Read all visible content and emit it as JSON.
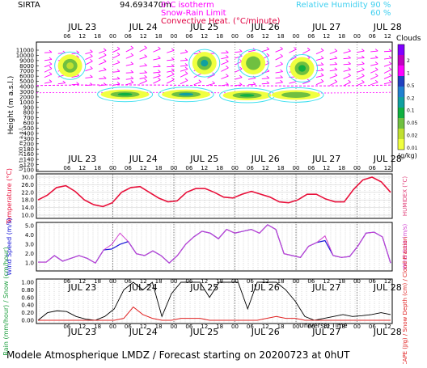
{
  "header": {
    "station": "SIRTA",
    "coords": "94.693470m",
    "legend_isotherm": "0°C isotherm",
    "legend_snow_rain": "Snow-Rain Limit",
    "legend_convective": "Convective Heat. (°C/minute)",
    "legend_rh": "Relative Humidity",
    "rh90": "90 %",
    "rh60": "60 %"
  },
  "footer": {
    "title": "Modele Atmospherique LMDZ / Forecast starting on 20200723 at 0hUT",
    "universal_time": "Universal Time"
  },
  "colors": {
    "temperature": "#e8103a",
    "wind": "#1a1ad8",
    "gust": "#d040d0",
    "rain": "#e02020",
    "cloud_fraction": "#000000",
    "isotherm": "#ff00ff",
    "humidity": "#40e0f0"
  },
  "days": [
    "JUL 23",
    "JUL 24",
    "JUL 25",
    "JUL 26",
    "JUL 27",
    "JUL 28"
  ],
  "hour_ticks": [
    "06",
    "12",
    "18",
    "00"
  ],
  "chart_data": [
    {
      "type": "heatmap",
      "title": "Clouds",
      "ylabel": "Height (m a.s.l.)",
      "ylabel2": "Up to 200 m a.g.l.",
      "colorbar_label": "(g/kg)",
      "colorbar_ticks": [
        "2",
        "1",
        "0.5",
        "0.2",
        "0.1",
        "0.05",
        "0.02",
        "0.01"
      ],
      "colorbar_colors": [
        "#8000ff",
        "#c000c0",
        "#ff00ff",
        "#2040c0",
        "#2080d0",
        "#10a0a0",
        "#10b040",
        "#70c040",
        "#c0e030",
        "#f0ff40"
      ],
      "yticks": [
        "11000",
        "10000",
        "9000",
        "8000",
        "7000",
        "6000",
        "5000",
        "4000",
        "3000",
        "2000",
        "1000",
        "900",
        "800",
        "700",
        "600",
        "500",
        "400",
        "300",
        "200",
        "180",
        "160",
        "140",
        "120",
        "100"
      ],
      "cloud_patches": [
        {
          "day": 0.3,
          "alt": 8000,
          "max_gkg": 0.02
        },
        {
          "day": 2.5,
          "alt": 8500,
          "max_gkg": 0.2
        },
        {
          "day": 3.3,
          "alt": 8500,
          "max_gkg": 0.05
        },
        {
          "day": 4.1,
          "alt": 7500,
          "max_gkg": 0.1
        },
        {
          "day": 1.2,
          "alt": 2500,
          "max_gkg": 0.1
        },
        {
          "day": 2.2,
          "alt": 2500,
          "max_gkg": 0.2
        },
        {
          "day": 3.2,
          "alt": 2300,
          "max_gkg": 0.1
        },
        {
          "day": 4.0,
          "alt": 2400,
          "max_gkg": 0.05
        }
      ]
    },
    {
      "type": "line",
      "ylabel": "Temperature (°C)",
      "ylabel_right": "HUMIDEX (°C)",
      "yticks": [
        "30.0",
        "26.0",
        "22.0",
        "18.0",
        "14.0",
        "10.0"
      ],
      "ylim": [
        10,
        30
      ],
      "series": [
        {
          "values": [
            18.0,
            20.5,
            24.5,
            25.5,
            22.5,
            18.0,
            15.5,
            14.5,
            16.5,
            22.0,
            24.5,
            25.0,
            22.0,
            19.0,
            17.0,
            17.5,
            22.0,
            24.0,
            24.0,
            22.0,
            19.5,
            19.0,
            21.0,
            22.5,
            21.0,
            19.5,
            17.0,
            16.5,
            18.0,
            21.0,
            21.0,
            18.5,
            17.0,
            17.0,
            23.5,
            28.5,
            30.0,
            27.5,
            22.0
          ]
        }
      ]
    },
    {
      "type": "line",
      "ylabel": "Wind Speed (m/s)",
      "ylabel_right": "Wind Gust (m/s)",
      "yticks": [
        "5.0",
        "4.0",
        "3.0",
        "2.0",
        "1.0"
      ],
      "ylim": [
        0.5,
        5.0
      ],
      "series": [
        {
          "values": [
            1.1,
            1.1,
            1.8,
            1.2,
            1.5,
            1.8,
            1.5,
            1.0,
            2.4,
            2.5,
            3.0,
            3.3,
            2.0,
            1.8,
            2.3,
            1.8,
            1.0,
            1.8,
            3.0,
            3.8,
            4.4,
            4.2,
            3.6,
            4.6,
            4.2,
            4.4,
            4.6,
            4.2,
            5.1,
            4.6,
            2.0,
            1.8,
            1.6,
            2.8,
            3.2,
            3.4,
            1.8,
            1.6,
            1.7,
            2.8,
            4.2,
            4.3,
            3.8,
            1.0
          ]
        },
        {
          "values": [
            1.1,
            1.1,
            1.8,
            1.2,
            1.5,
            1.8,
            1.5,
            1.0,
            2.4,
            3.0,
            4.2,
            3.3,
            2.0,
            1.8,
            2.3,
            1.8,
            1.0,
            1.8,
            3.0,
            3.8,
            4.4,
            4.2,
            3.6,
            4.6,
            4.2,
            4.4,
            4.6,
            4.2,
            5.1,
            4.6,
            2.0,
            1.8,
            1.6,
            2.8,
            3.2,
            3.9,
            1.8,
            1.6,
            1.7,
            2.8,
            4.2,
            4.3,
            3.8,
            1.0
          ]
        }
      ]
    },
    {
      "type": "line",
      "ylabel": "Rain (mm/hour) / Snow (cm/hour)",
      "ylabel_right": "CAPE (J/g) / Snow Depth (cm) / Cloud Fraction",
      "yticks": [
        "1.00",
        "0.80",
        "0.60",
        "0.40",
        "0.20",
        "0.00"
      ],
      "ylim": [
        0,
        1
      ],
      "series": [
        {
          "values": [
            0.0,
            0.2,
            0.25,
            0.23,
            0.1,
            0.03,
            0.0,
            0.1,
            0.3,
            0.8,
            1.0,
            0.8,
            1.0,
            0.1,
            0.7,
            1.0,
            1.0,
            1.0,
            0.6,
            1.0,
            1.0,
            1.0,
            0.3,
            1.0,
            1.0,
            1.0,
            0.8,
            0.5,
            0.1,
            0.0,
            0.05,
            0.1,
            0.15,
            0.1,
            0.12,
            0.15,
            0.2,
            0.15
          ]
        },
        {
          "values": [
            0,
            0,
            0,
            0,
            0,
            0,
            0,
            0,
            0,
            0.05,
            0.35,
            0.15,
            0.05,
            0,
            0,
            0.05,
            0.05,
            0.05,
            0,
            0,
            0,
            0,
            0,
            0,
            0.05,
            0.1,
            0.05,
            0.05,
            0,
            0,
            0,
            0,
            0,
            0,
            0,
            0,
            0,
            0
          ]
        }
      ]
    }
  ]
}
